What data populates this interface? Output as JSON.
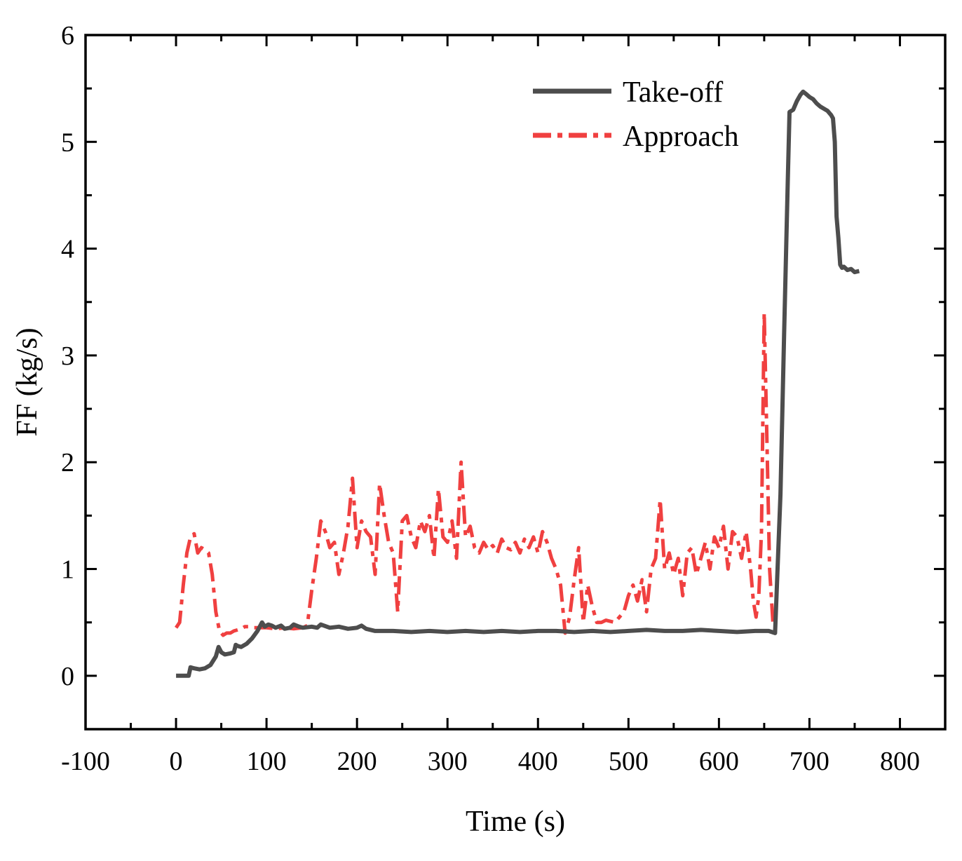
{
  "chart_data": {
    "type": "line",
    "title": "",
    "xlabel": "Time (s)",
    "ylabel": "FF (kg/s)",
    "xlim": [
      -100,
      850
    ],
    "ylim": [
      -0.5,
      6
    ],
    "xticks": [
      -100,
      0,
      100,
      200,
      300,
      400,
      500,
      600,
      700,
      800
    ],
    "xtick_labels": [
      "-100",
      "0",
      "100",
      "200",
      "300",
      "400",
      "500",
      "600",
      "700",
      "800"
    ],
    "yticks": [
      0,
      1,
      2,
      3,
      4,
      5,
      6
    ],
    "ytick_labels": [
      "0",
      "1",
      "2",
      "3",
      "4",
      "5",
      "6"
    ],
    "grid": false,
    "legend_position": "top-right",
    "series": [
      {
        "name": "Take-off",
        "color": "#4d4d4d",
        "style": "solid",
        "x": [
          0,
          14,
          16,
          20,
          26,
          32,
          38,
          44,
          47,
          50,
          54,
          60,
          64,
          66,
          68,
          72,
          78,
          84,
          90,
          95,
          98,
          102,
          106,
          110,
          116,
          120,
          126,
          130,
          136,
          140,
          150,
          156,
          160,
          170,
          180,
          190,
          200,
          205,
          210,
          220,
          240,
          260,
          280,
          300,
          320,
          340,
          360,
          380,
          400,
          420,
          440,
          460,
          480,
          500,
          520,
          540,
          560,
          580,
          600,
          620,
          640,
          655,
          662,
          668,
          672,
          676,
          678,
          682,
          686,
          690,
          693,
          696,
          700,
          704,
          708,
          712,
          716,
          720,
          724,
          726,
          728,
          730,
          732,
          734,
          736,
          738,
          742,
          746,
          750,
          755
        ],
        "y": [
          0.0,
          0.0,
          0.08,
          0.07,
          0.06,
          0.07,
          0.1,
          0.18,
          0.27,
          0.22,
          0.2,
          0.21,
          0.22,
          0.29,
          0.28,
          0.27,
          0.3,
          0.35,
          0.42,
          0.5,
          0.46,
          0.48,
          0.47,
          0.45,
          0.47,
          0.44,
          0.45,
          0.48,
          0.46,
          0.45,
          0.46,
          0.45,
          0.48,
          0.45,
          0.46,
          0.44,
          0.45,
          0.47,
          0.44,
          0.42,
          0.42,
          0.41,
          0.42,
          0.41,
          0.42,
          0.41,
          0.42,
          0.41,
          0.42,
          0.42,
          0.41,
          0.42,
          0.41,
          0.42,
          0.43,
          0.42,
          0.42,
          0.43,
          0.42,
          0.41,
          0.42,
          0.42,
          0.4,
          1.7,
          3.2,
          4.6,
          5.28,
          5.3,
          5.38,
          5.44,
          5.47,
          5.45,
          5.42,
          5.4,
          5.36,
          5.33,
          5.31,
          5.29,
          5.25,
          5.22,
          5.0,
          4.3,
          4.1,
          3.85,
          3.82,
          3.83,
          3.8,
          3.81,
          3.78,
          3.79
        ]
      },
      {
        "name": "Approach",
        "color": "#f04040",
        "style": "dashdot",
        "x": [
          0,
          4,
          8,
          12,
          16,
          20,
          24,
          28,
          32,
          36,
          40,
          44,
          48,
          52,
          56,
          60,
          64,
          68,
          72,
          76,
          80,
          84,
          90,
          100,
          110,
          120,
          130,
          140,
          145,
          150,
          155,
          160,
          165,
          170,
          175,
          180,
          185,
          190,
          195,
          200,
          205,
          210,
          215,
          220,
          225,
          230,
          235,
          240,
          245,
          250,
          255,
          260,
          265,
          270,
          275,
          280,
          285,
          290,
          295,
          300,
          305,
          310,
          315,
          320,
          325,
          330,
          335,
          340,
          345,
          350,
          355,
          360,
          365,
          370,
          375,
          380,
          385,
          390,
          395,
          400,
          405,
          410,
          415,
          420,
          425,
          430,
          435,
          440,
          445,
          450,
          455,
          460,
          465,
          470,
          475,
          480,
          485,
          490,
          495,
          500,
          505,
          510,
          515,
          520,
          525,
          530,
          535,
          540,
          545,
          550,
          555,
          560,
          565,
          570,
          575,
          580,
          585,
          590,
          595,
          600,
          605,
          610,
          615,
          620,
          625,
          630,
          635,
          638,
          641,
          644,
          647,
          650,
          653,
          656,
          660
        ],
        "y": [
          0.45,
          0.5,
          0.85,
          1.15,
          1.3,
          1.33,
          1.15,
          1.2,
          1.18,
          1.15,
          0.95,
          0.6,
          0.42,
          0.38,
          0.4,
          0.4,
          0.42,
          0.43,
          0.44,
          0.46,
          0.46,
          0.45,
          0.45,
          0.45,
          0.44,
          0.45,
          0.44,
          0.45,
          0.47,
          0.8,
          1.1,
          1.45,
          1.35,
          1.2,
          1.25,
          0.95,
          1.15,
          1.4,
          1.85,
          1.2,
          1.45,
          1.35,
          1.3,
          0.95,
          1.8,
          1.5,
          1.25,
          1.15,
          0.6,
          1.45,
          1.5,
          1.3,
          1.2,
          1.45,
          1.35,
          1.5,
          1.1,
          1.75,
          1.3,
          1.25,
          1.45,
          1.1,
          2.0,
          1.3,
          1.4,
          1.2,
          1.15,
          1.25,
          1.18,
          1.22,
          1.15,
          1.28,
          1.2,
          1.18,
          1.25,
          1.15,
          1.28,
          1.2,
          1.3,
          1.15,
          1.35,
          1.25,
          1.1,
          1.0,
          0.85,
          0.4,
          0.55,
          0.9,
          1.2,
          0.5,
          0.85,
          0.65,
          0.5,
          0.5,
          0.52,
          0.51,
          0.5,
          0.55,
          0.6,
          0.75,
          0.85,
          0.7,
          0.9,
          0.6,
          1.0,
          1.1,
          1.65,
          1.0,
          1.15,
          0.95,
          1.1,
          0.75,
          1.15,
          1.2,
          0.95,
          1.1,
          1.25,
          1.0,
          1.3,
          1.2,
          1.4,
          1.0,
          1.35,
          1.3,
          1.1,
          1.35,
          1.0,
          0.7,
          0.55,
          0.75,
          1.35,
          3.4,
          2.2,
          1.0,
          0.45
        ]
      }
    ]
  }
}
